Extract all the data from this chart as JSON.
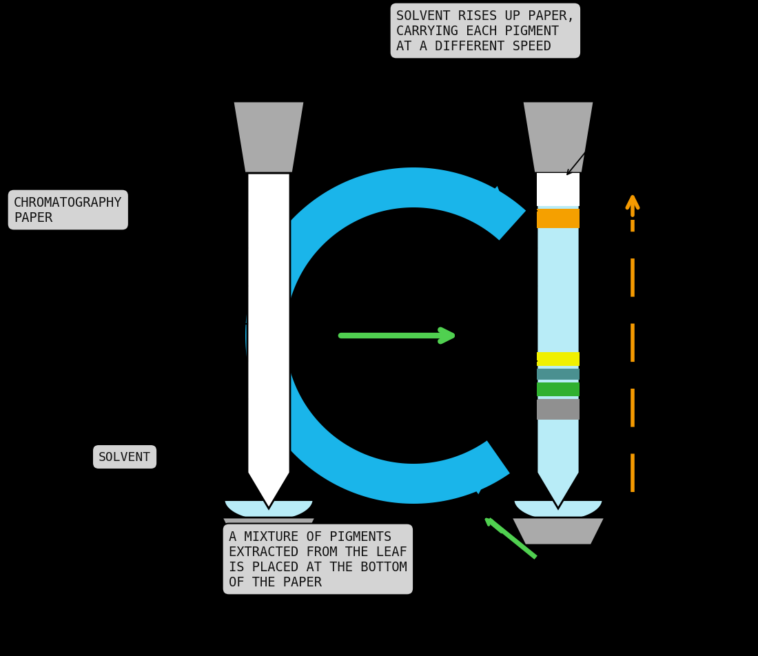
{
  "bg": "#000000",
  "paper_color": "#ffffff",
  "solvent_color": "#b8ecf7",
  "stand_color": "#aaaaaa",
  "blue_arrow": "#1ab5ea",
  "green_arrow": "#50d050",
  "orange_arrow": "#f59a00",
  "text_box_bg": "#d4d4d4",
  "stripe_orange": "#f5a000",
  "stripe_yellow": "#f0f000",
  "stripe_teal": "#4a9090",
  "stripe_green": "#30b030",
  "stripe_gray": "#909090",
  "line_color": "#000000",
  "text_color": "#111111",
  "top_text": "SOLVENT RISES UP PAPER,\nCARRYING EACH PIGMENT\nAT A DIFFERENT SPEED",
  "chrom_text": "CHROMATOGRAPHY\nPAPER",
  "solvent_text": "SOLVENT",
  "bottom_text": "A MIXTURE OF PIGMENTS\nEXTRACTED FROM THE LEAF\nIS PLACED AT THE BOTTOM\nOF THE PAPER"
}
